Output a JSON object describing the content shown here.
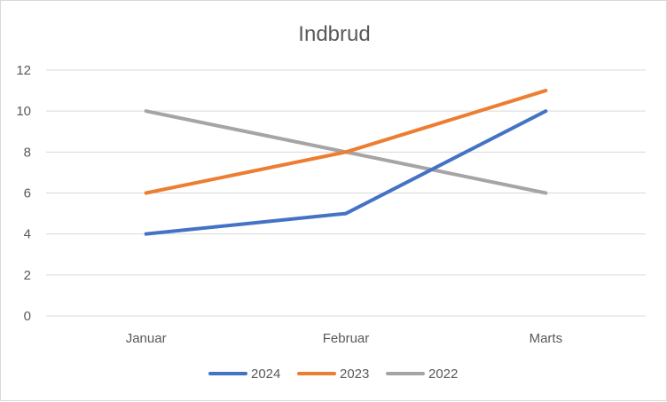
{
  "chart_data": {
    "type": "line",
    "title": "Indbrud",
    "xlabel": "",
    "ylabel": "",
    "categories": [
      "Januar",
      "Februar",
      "Marts"
    ],
    "ylim": [
      0,
      12
    ],
    "yticks": [
      "0",
      "2",
      "4",
      "6",
      "8",
      "10",
      "12"
    ],
    "grid": true,
    "legend_position": "bottom",
    "series": [
      {
        "name": "2024",
        "values": [
          4,
          5,
          10
        ],
        "color": "#4472c4"
      },
      {
        "name": "2023",
        "values": [
          6,
          8,
          11
        ],
        "color": "#ed7d31"
      },
      {
        "name": "2022",
        "values": [
          10,
          8,
          6
        ],
        "color": "#a5a5a5"
      }
    ]
  }
}
